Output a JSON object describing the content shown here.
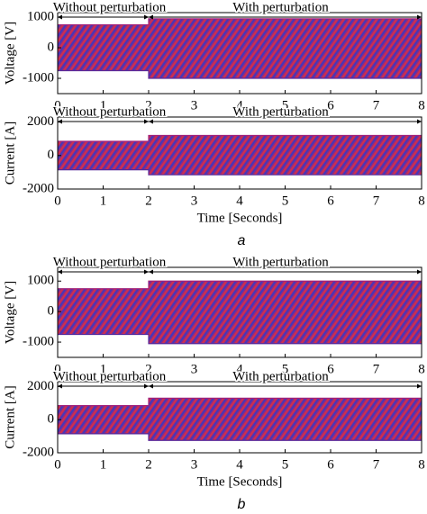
{
  "chart_data": [
    {
      "type": "line",
      "ylabel": "Voltage [V]",
      "xlim": [
        0,
        8
      ],
      "xticks": [
        0,
        1,
        2,
        3,
        4,
        5,
        6,
        7,
        8
      ],
      "ylim": [
        -1500,
        1150
      ],
      "yticks": [
        -1000,
        0,
        1000
      ],
      "annotations": [
        "Without perturbation",
        "With perturbation"
      ],
      "series": [
        {
          "color": "#a0207a",
          "x": [
            0,
            2,
            2,
            8
          ],
          "values": [
            750,
            750,
            950,
            950
          ]
        },
        {
          "color": "#5a2a9a",
          "x": [
            0,
            2,
            2,
            8
          ],
          "values": [
            -750,
            -750,
            -1000,
            -1000
          ]
        }
      ]
    },
    {
      "type": "line",
      "ylabel": "Current [A]",
      "xlabel": "Time [Seconds]",
      "caption": "a",
      "xlim": [
        0,
        8
      ],
      "xticks": [
        0,
        1,
        2,
        3,
        4,
        5,
        6,
        7,
        8
      ],
      "ylim": [
        -2000,
        2300
      ],
      "yticks": [
        -2000,
        0,
        2000
      ],
      "annotations": [
        "Without perturbation",
        "With perturbation"
      ],
      "series": [
        {
          "color": "#a0207a",
          "x": [
            0,
            2,
            2,
            8
          ],
          "values": [
            850,
            850,
            1200,
            1200
          ]
        },
        {
          "color": "#5a2a9a",
          "x": [
            0,
            2,
            2,
            8
          ],
          "values": [
            -850,
            -850,
            -1150,
            -1150
          ]
        }
      ]
    },
    {
      "type": "line",
      "ylabel": "Voltage [V]",
      "xlim": [
        0,
        8
      ],
      "xticks": [
        0,
        1,
        2,
        3,
        4,
        5,
        6,
        7,
        8
      ],
      "ylim": [
        -1500,
        1450
      ],
      "yticks": [
        -1000,
        0,
        1000
      ],
      "annotations": [
        "Without perturbation",
        "With perturbation"
      ],
      "series": [
        {
          "color": "#a0207a",
          "x": [
            0,
            2,
            2,
            8
          ],
          "values": [
            750,
            750,
            1000,
            1000
          ]
        },
        {
          "color": "#5a2a9a",
          "x": [
            0,
            2,
            2,
            8
          ],
          "values": [
            -750,
            -750,
            -1050,
            -1050
          ]
        }
      ]
    },
    {
      "type": "line",
      "ylabel": "Current [A]",
      "xlabel": "Time [Seconds]",
      "caption": "b",
      "xlim": [
        0,
        8
      ],
      "xticks": [
        0,
        1,
        2,
        3,
        4,
        5,
        6,
        7,
        8
      ],
      "ylim": [
        -2000,
        2300
      ],
      "yticks": [
        -2000,
        0,
        2000
      ],
      "annotations": [
        "Without perturbation",
        "With perturbation"
      ],
      "series": [
        {
          "color": "#a0207a",
          "x": [
            0,
            2,
            2,
            8
          ],
          "values": [
            850,
            850,
            1300,
            1300
          ]
        },
        {
          "color": "#5a2a9a",
          "x": [
            0,
            2,
            2,
            8
          ],
          "values": [
            -850,
            -850,
            -1250,
            -1250
          ]
        }
      ]
    }
  ]
}
